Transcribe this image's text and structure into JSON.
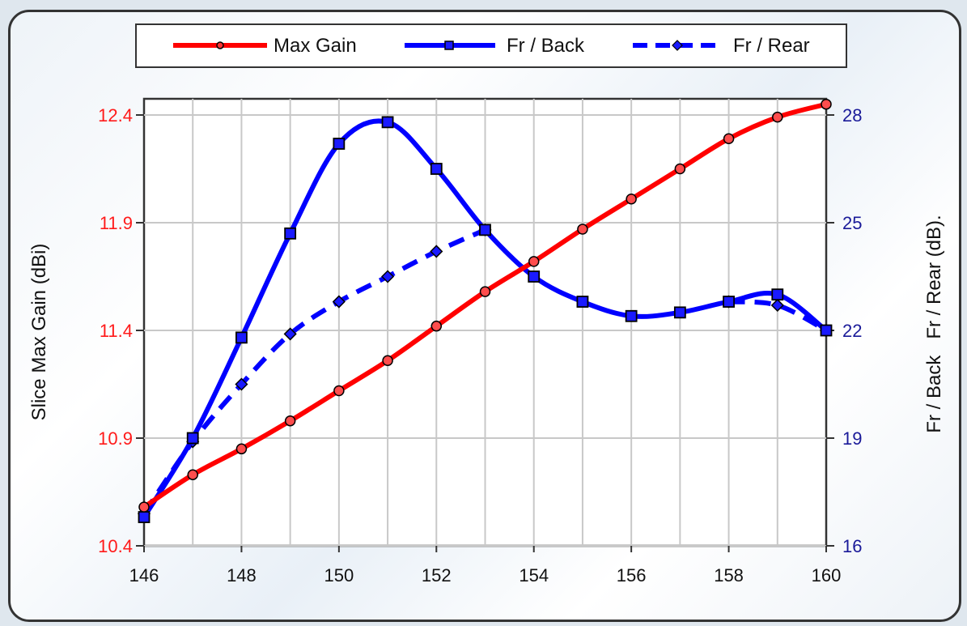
{
  "chart_data": {
    "type": "line",
    "ylabel_left": "Slice Max Gain (dBi)",
    "ylabel_right": "Fr / Back   Fr / Rear (dB).",
    "x": [
      146,
      147,
      148,
      149,
      150,
      151,
      152,
      153,
      154,
      155,
      156,
      157,
      158,
      159,
      160
    ],
    "x_ticks": [
      "146",
      "148",
      "150",
      "152",
      "154",
      "156",
      "158",
      "160"
    ],
    "xlim": [
      146,
      160
    ],
    "ylim_left": [
      10.4,
      12.4
    ],
    "ylim_right": [
      16,
      28
    ],
    "y_ticks_left": [
      "10.4",
      "10.9",
      "11.4",
      "11.9",
      "12.4"
    ],
    "y_ticks_right": [
      "16",
      "19",
      "22",
      "25",
      "28"
    ],
    "grid": true,
    "legend_position": "top",
    "series": [
      {
        "name": "Max Gain",
        "axis": "left",
        "color": "#ff0000",
        "style": "solid",
        "marker": "circle",
        "x": [
          146,
          147,
          148,
          149,
          150,
          151,
          152,
          153,
          154,
          155,
          156,
          157,
          158,
          159,
          160
        ],
        "values": [
          10.58,
          10.73,
          10.85,
          10.98,
          11.12,
          11.26,
          11.42,
          11.58,
          11.72,
          11.87,
          12.01,
          12.15,
          12.29,
          12.39,
          12.45
        ]
      },
      {
        "name": "Fr / Back",
        "axis": "right",
        "color": "#0000ff",
        "style": "solid",
        "marker": "square",
        "x": [
          146,
          147,
          148,
          149,
          150,
          151,
          152,
          153,
          154,
          155,
          156,
          157,
          158,
          159,
          160
        ],
        "values": [
          16.8,
          19.0,
          21.8,
          24.7,
          27.2,
          27.8,
          26.5,
          24.8,
          23.5,
          22.8,
          22.4,
          22.5,
          22.8,
          23.0,
          22.0
        ]
      },
      {
        "name": "Fr / Rear",
        "axis": "right",
        "color": "#0000ff",
        "style": "dashed",
        "marker": "diamond",
        "x": [
          146,
          147,
          148,
          149,
          150,
          151,
          152,
          153,
          158,
          159,
          160
        ],
        "values": [
          16.9,
          18.9,
          20.5,
          21.9,
          22.8,
          23.5,
          24.2,
          24.8,
          22.8,
          22.7,
          22.0
        ]
      }
    ]
  }
}
